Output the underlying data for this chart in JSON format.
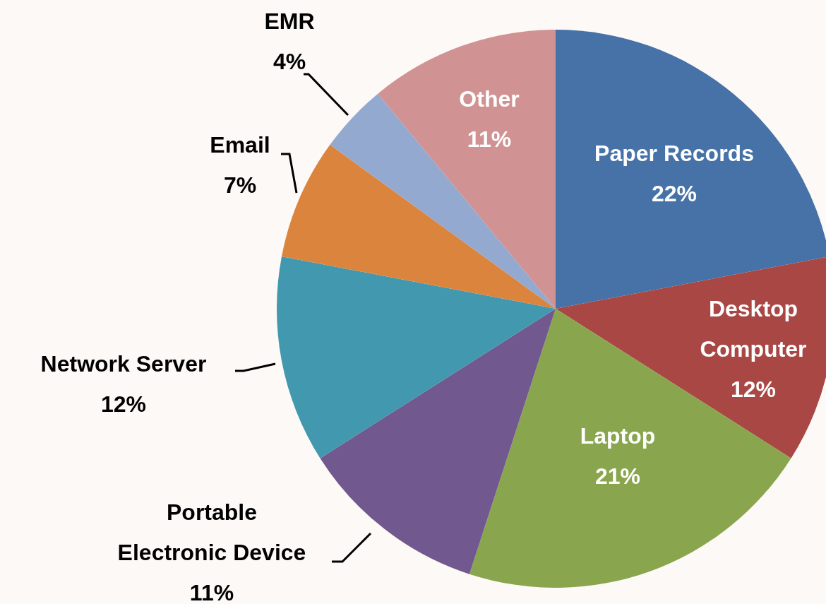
{
  "chart_data": {
    "type": "pie",
    "categories": [
      "Paper Records",
      "Desktop Computer",
      "Laptop",
      "Portable Electronic Device",
      "Network Server",
      "Email",
      "EMR",
      "Other"
    ],
    "values": [
      22,
      12,
      21,
      11,
      12,
      7,
      4,
      11
    ],
    "colors": [
      "#4672a8",
      "#a84744",
      "#89a54e",
      "#71588f",
      "#4198af",
      "#db843d",
      "#93a9cf",
      "#d09293"
    ],
    "value_labels": [
      "22%",
      "12%",
      "21%",
      "11%",
      "12%",
      "7%",
      "4%",
      "11%"
    ]
  }
}
